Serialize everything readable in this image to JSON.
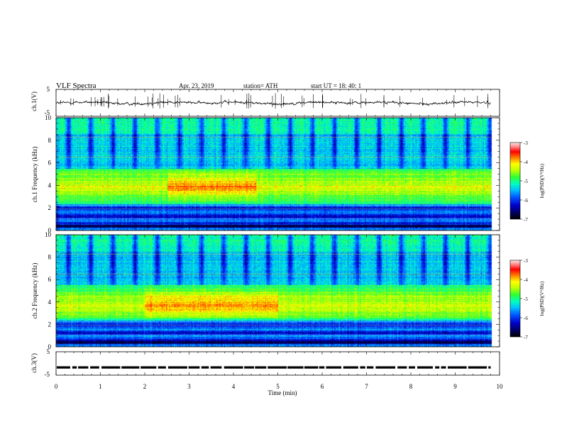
{
  "header": {
    "title": "VLF Spectra",
    "date": "Apr. 23, 2019",
    "station": "station= ATH",
    "start": "start UT = 18: 40: 1"
  },
  "chart_data": [
    {
      "type": "line",
      "panel": "ch1-waveform",
      "ylabel": "ch.1(V)",
      "ylim": [
        -5,
        5
      ],
      "yticks": [
        "5",
        "-5"
      ],
      "xlim": [
        0,
        10
      ],
      "trace": {
        "approx_mean_v": 0,
        "approx_amplitude_v": 0.7,
        "end_time_min": 9.8,
        "color": "#000000"
      }
    },
    {
      "type": "heatmap",
      "panel": "ch1-spectrogram",
      "ylabel": "ch.1 Frequency (kHz)",
      "ylim": [
        0,
        10
      ],
      "yticks": [
        "0",
        "2",
        "4",
        "6",
        "8",
        "10"
      ],
      "xlim": [
        0,
        10
      ],
      "data_end_min": 9.8,
      "features": {
        "noise_band_khz": [
          2.5,
          5.5
        ],
        "peak_band_khz": [
          3.5,
          4.3
        ],
        "peak_time_min": [
          2.5,
          4.5
        ],
        "quiet_band_khz": [
          5.5,
          9.5
        ],
        "low_band_khz": [
          0.5,
          2.3
        ],
        "spheric_interval_min": 0.5
      },
      "colorbar": {
        "label": "log(PSD)(V²/Hz)",
        "range": [
          -7,
          -3
        ],
        "ticks": [
          "-3",
          "-4",
          "-5",
          "-6",
          "-7"
        ]
      }
    },
    {
      "type": "heatmap",
      "panel": "ch2-spectrogram",
      "ylabel": "ch.2 Frequency (kHz)",
      "ylim": [
        0,
        10
      ],
      "yticks": [
        "0",
        "2",
        "4",
        "6",
        "8",
        "10"
      ],
      "xlim": [
        0,
        10
      ],
      "data_end_min": 9.8,
      "features": {
        "noise_band_khz": [
          2.5,
          5.5
        ],
        "peak_band_khz": [
          3.3,
          4.2
        ],
        "peak_time_min": [
          2.0,
          5.0
        ],
        "quiet_band_khz": [
          5.5,
          9.5
        ],
        "low_band_khz": [
          0.5,
          2.0
        ],
        "spheric_interval_min": 0.5
      },
      "colorbar": {
        "label": "log(PSD)(V²/Hz)",
        "range": [
          -7,
          -3
        ],
        "ticks": [
          "-3",
          "-4",
          "-5",
          "-6",
          "-7"
        ]
      }
    },
    {
      "type": "line",
      "panel": "ch3-waveform",
      "ylabel": "ch.3(V)",
      "ylim": [
        -5,
        5
      ],
      "yticks": [
        "5",
        "-5"
      ],
      "xlim": [
        0,
        10
      ],
      "xlabel": "Time (min)",
      "xticks": [
        "0",
        "1",
        "2",
        "3",
        "4",
        "5",
        "6",
        "7",
        "8",
        "9",
        "10"
      ],
      "trace": {
        "approx_mean_v": -1.7,
        "end_time_min": 9.8,
        "color": "#000000"
      }
    }
  ]
}
